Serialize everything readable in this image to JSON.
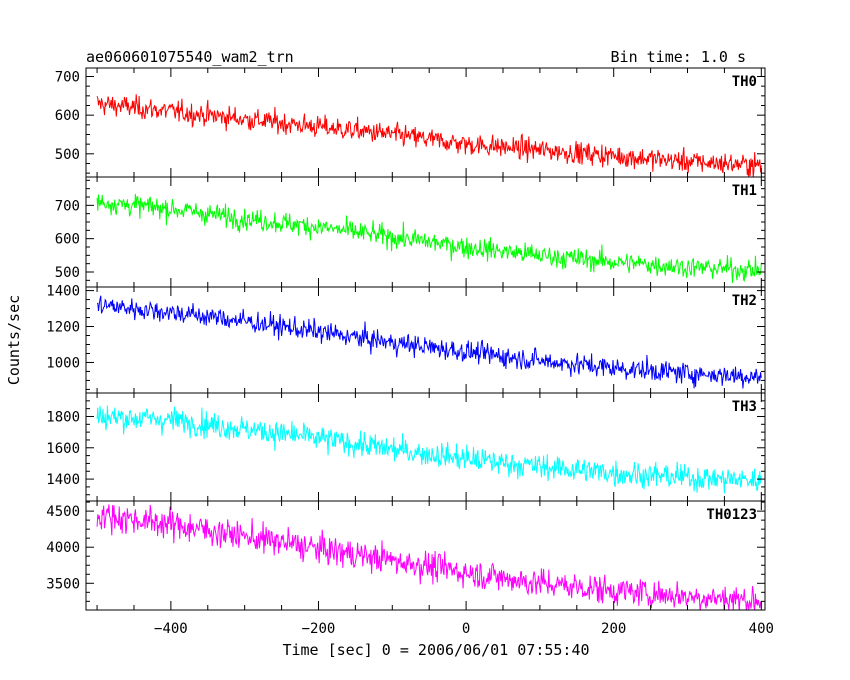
{
  "header": {
    "left_title": "ae060601075540_wam2_trn",
    "right_title": "Bin time: 1.0 s"
  },
  "chart_data": {
    "type": "line",
    "title": "ae060601075540_wam2_trn",
    "subtitle": "Bin time: 1.0 s",
    "xlabel": "Time [sec] 0 = 2006/06/01 07:55:40",
    "ylabel": "Counts/sec",
    "xlim": [
      -515,
      405
    ],
    "x_ticks": [
      -400,
      -200,
      0,
      200,
      400
    ],
    "x_tick_labels": [
      "−400",
      "−200",
      "0",
      "200",
      "400"
    ],
    "data_x_range": [
      -500,
      400
    ],
    "bin_time_s": 1.0,
    "grid": false,
    "legend": "none",
    "panels": [
      {
        "name": "TH0",
        "color": "#ff0000",
        "ylim": [
          440,
          722
        ],
        "y_ticks": [
          500,
          600,
          700
        ],
        "series": {
          "x": [
            -500,
            -400,
            -300,
            -200,
            -100,
            0,
            100,
            200,
            300,
            400
          ],
          "values": [
            630,
            610,
            590,
            570,
            550,
            525,
            510,
            495,
            480,
            470
          ]
        }
      },
      {
        "name": "TH1",
        "color": "#00ff00",
        "ylim": [
          455,
          785
        ],
        "y_ticks": [
          500,
          600,
          700
        ],
        "series": {
          "x": [
            -500,
            -400,
            -300,
            -200,
            -100,
            0,
            100,
            200,
            300,
            400
          ],
          "values": [
            710,
            690,
            660,
            635,
            605,
            575,
            550,
            530,
            515,
            505
          ]
        }
      },
      {
        "name": "TH2",
        "color": "#0000ff",
        "ylim": [
          830,
          1420
        ],
        "y_ticks": [
          1000,
          1200,
          1400
        ],
        "series": {
          "x": [
            -500,
            -400,
            -300,
            -200,
            -100,
            0,
            100,
            200,
            300,
            400
          ],
          "values": [
            1320,
            1280,
            1230,
            1170,
            1110,
            1060,
            1010,
            970,
            940,
            920
          ]
        }
      },
      {
        "name": "TH3",
        "color": "#00ffff",
        "ylim": [
          1260,
          1950
        ],
        "y_ticks": [
          1400,
          1600,
          1800
        ],
        "series": {
          "x": [
            -500,
            -400,
            -300,
            -200,
            -100,
            0,
            100,
            200,
            300,
            400
          ],
          "values": [
            1800,
            1780,
            1720,
            1660,
            1590,
            1530,
            1480,
            1440,
            1410,
            1390
          ]
        }
      },
      {
        "name": "TH0123",
        "color": "#ff00ff",
        "ylim": [
          3130,
          4640
        ],
        "y_ticks": [
          3500,
          4000,
          4500
        ],
        "series": {
          "x": [
            -500,
            -400,
            -300,
            -200,
            -100,
            0,
            100,
            200,
            300,
            400
          ],
          "values": [
            4450,
            4320,
            4150,
            3980,
            3820,
            3650,
            3500,
            3400,
            3320,
            3260
          ]
        }
      }
    ]
  }
}
